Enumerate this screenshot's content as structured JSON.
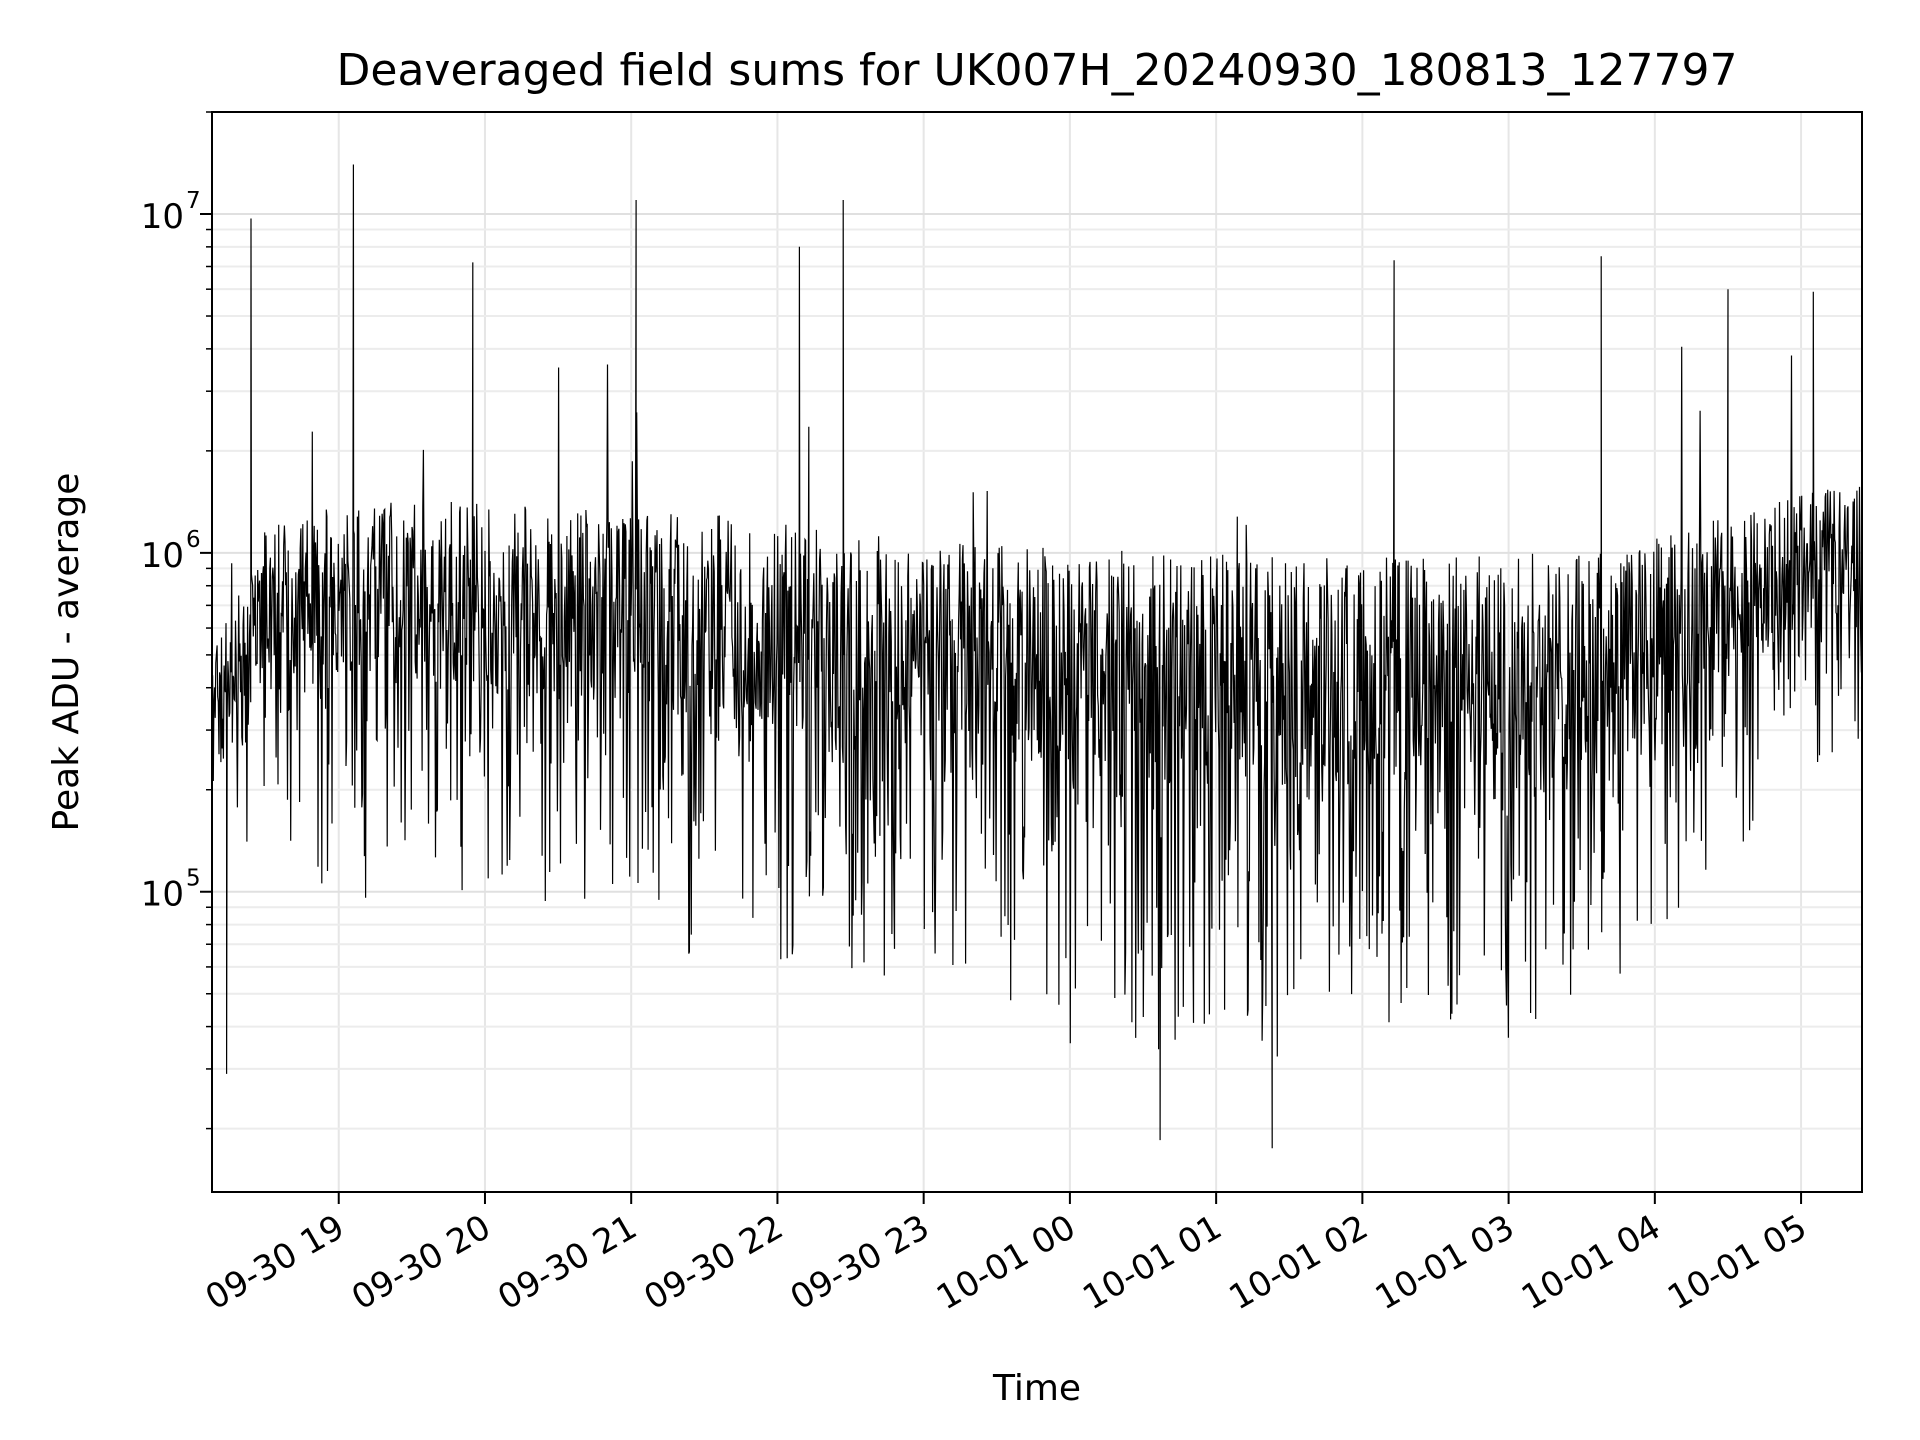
{
  "chart_data": {
    "type": "line",
    "title": "Deaveraged field sums for UK007H_20240930_180813_127797",
    "xlabel": "Time",
    "ylabel": "Peak ADU - average",
    "x_scale": "time",
    "y_scale": "log",
    "xlim": [
      "2024-09-30 18:08",
      "2024-10-01 05:25"
    ],
    "ylim": [
      13000,
      20000000
    ],
    "grid": true,
    "x_tick_labels": [
      "09-30 19",
      "09-30 20",
      "09-30 21",
      "09-30 22",
      "09-30 23",
      "10-01 00",
      "10-01 01",
      "10-01 02",
      "10-01 03",
      "10-01 04",
      "10-01 05"
    ],
    "y_ticks": [
      {
        "base": "10",
        "exp": "5",
        "value": 100000
      },
      {
        "base": "10",
        "exp": "6",
        "value": 1000000
      },
      {
        "base": "10",
        "exp": "7",
        "value": 10000000
      }
    ],
    "series": [
      {
        "line_color": "#000000",
        "note": "dense per-frame signal; values below are the envelope read hourly from the plot",
        "x": [
          "2024-09-30 18:10",
          "2024-09-30 18:30",
          "2024-09-30 19:00",
          "2024-09-30 19:30",
          "2024-09-30 20:00",
          "2024-09-30 20:30",
          "2024-09-30 21:00",
          "2024-09-30 21:30",
          "2024-09-30 22:00",
          "2024-09-30 22:30",
          "2024-09-30 23:00",
          "2024-09-30 23:30",
          "2024-10-01 00:00",
          "2024-10-01 00:30",
          "2024-10-01 01:00",
          "2024-10-01 01:30",
          "2024-10-01 02:00",
          "2024-10-01 02:30",
          "2024-10-01 03:00",
          "2024-10-01 03:30",
          "2024-10-01 04:00",
          "2024-10-01 04:30",
          "2024-10-01 05:00",
          "2024-10-01 05:25"
        ],
        "upper": [
          550000,
          1200000,
          1400000,
          1450000,
          1400000,
          1350000,
          1350000,
          1300000,
          1250000,
          1150000,
          1100000,
          1050000,
          1050000,
          1000000,
          1000000,
          980000,
          980000,
          980000,
          1000000,
          1000000,
          1100000,
          1300000,
          1500000,
          1600000
        ],
        "lower": [
          150000,
          120000,
          90000,
          85000,
          80000,
          75000,
          65000,
          60000,
          55000,
          50000,
          45000,
          40000,
          35000,
          30000,
          28000,
          30000,
          30000,
          32000,
          35000,
          40000,
          60000,
          120000,
          200000,
          250000
        ],
        "spikes": [
          {
            "x": "2024-09-30 18:24",
            "y": 9700000
          },
          {
            "x": "2024-09-30 19:06",
            "y": 14000000
          },
          {
            "x": "2024-09-30 19:55",
            "y": 7200000
          },
          {
            "x": "2024-09-30 21:02",
            "y": 11000000
          },
          {
            "x": "2024-09-30 22:09",
            "y": 8000000
          },
          {
            "x": "2024-09-30 22:27",
            "y": 11000000
          },
          {
            "x": "2024-10-01 02:13",
            "y": 7300000
          },
          {
            "x": "2024-10-01 03:38",
            "y": 7500000
          },
          {
            "x": "2024-10-01 04:30",
            "y": 6000000
          },
          {
            "x": "2024-10-01 05:05",
            "y": 5900000
          }
        ],
        "dips": [
          {
            "x": "2024-09-30 18:14",
            "y": 29000
          },
          {
            "x": "2024-10-01 00:37",
            "y": 18500
          },
          {
            "x": "2024-10-01 01:23",
            "y": 17500
          }
        ]
      }
    ]
  }
}
